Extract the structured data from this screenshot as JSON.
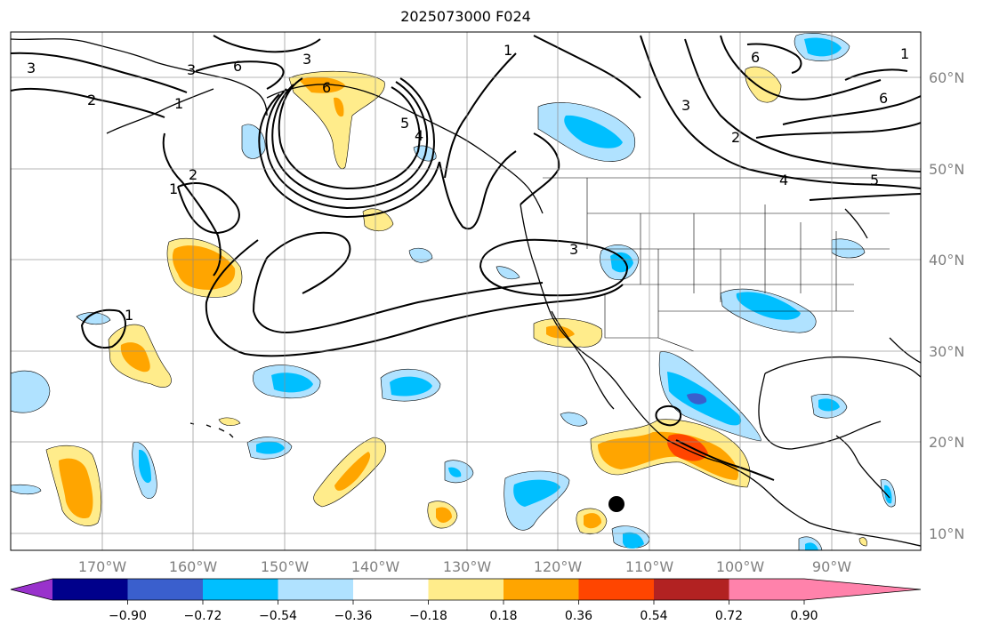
{
  "title": "2025073000 F024",
  "latitude_labels": [
    "60°N",
    "50°N",
    "40°N",
    "30°N",
    "20°N",
    "10°N"
  ],
  "longitude_labels": [
    "170°W",
    "160°W",
    "150°W",
    "140°W",
    "130°W",
    "120°W",
    "110°W",
    "100°W",
    "90°W"
  ],
  "contour_labels": [
    "3",
    "2",
    "1",
    "3",
    "6",
    "2",
    "1",
    "6",
    "5",
    "4",
    "1",
    "3",
    "1",
    "3",
    "2",
    "1",
    "3",
    "4",
    "5",
    "6",
    "6"
  ],
  "colorbar": {
    "tick_labels": [
      "−0.90",
      "−0.72",
      "−0.54",
      "−0.36",
      "−0.18",
      "0.18",
      "0.36",
      "0.54",
      "0.72",
      "0.90"
    ],
    "colors": [
      "#9932cc",
      "#00008b",
      "#3a5fcd",
      "#00bfff",
      "#b0e2ff",
      "#ffffff",
      "#ffec8b",
      "#ffa500",
      "#ff4500",
      "#b22222",
      "#ff82ab"
    ]
  },
  "colors": {
    "neg_light": "#b0e2ff",
    "neg_mid": "#00bfff",
    "neg_dark": "#3a5fcd",
    "pos_light": "#ffec8b",
    "pos_mid": "#ffa500",
    "pos_dark": "#ff4500"
  }
}
